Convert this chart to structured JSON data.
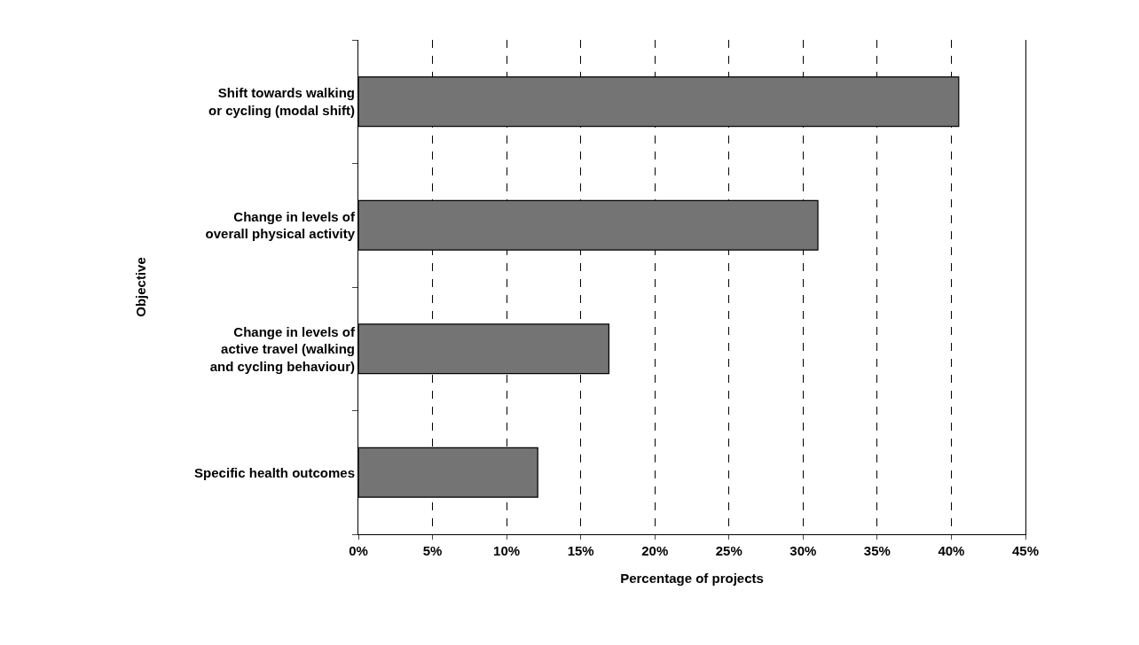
{
  "chart_data": {
    "type": "bar",
    "orientation": "horizontal",
    "xlabel": "Percentage of projects",
    "ylabel": "Objective",
    "categories": [
      "Shift towards walking\nor cycling (modal shift)",
      "Change in levels of\noverall physical activity",
      "Change in levels of\nactive travel (walking\nand cycling behaviour)",
      "Specific health outcomes"
    ],
    "values": [
      40.5,
      31.0,
      16.9,
      12.1
    ],
    "color": "#747474",
    "xlim": [
      0,
      45
    ],
    "xticks": [
      {
        "value": 0,
        "label": "0%"
      },
      {
        "value": 5,
        "label": "5%"
      },
      {
        "value": 10,
        "label": "10%"
      },
      {
        "value": 15,
        "label": "15%"
      },
      {
        "value": 20,
        "label": "20%"
      },
      {
        "value": 25,
        "label": "25%"
      },
      {
        "value": 30,
        "label": "30%"
      },
      {
        "value": 35,
        "label": "35%"
      },
      {
        "value": 40,
        "label": "40%"
      },
      {
        "value": 45,
        "label": "45%"
      }
    ],
    "grid": "x"
  }
}
